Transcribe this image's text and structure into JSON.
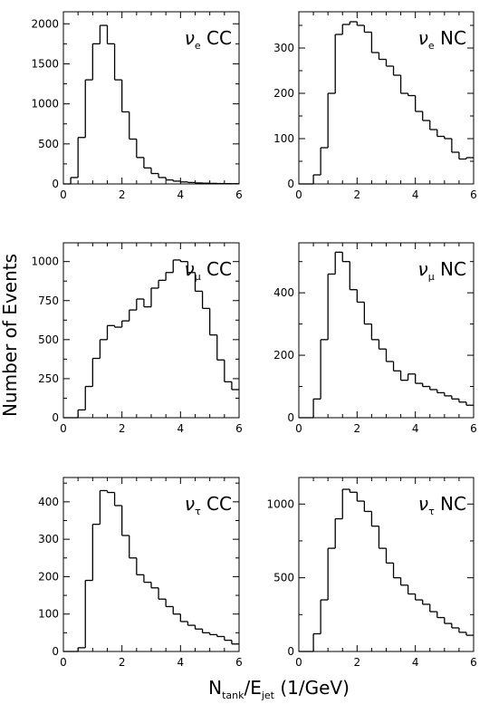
{
  "figure": {
    "ylabel": "Number of Events",
    "xlabel_main": "N",
    "xlabel_sub1": "tank",
    "xlabel_mid": "/E",
    "xlabel_sub2": "jet",
    "xlabel_tail": " (1/GeV)"
  },
  "chart_data": [
    {
      "type": "bar",
      "label_greek": "ν",
      "label_sub": "e",
      "label_text": " CC",
      "xlim": [
        0,
        6
      ],
      "xticks": [
        0,
        2,
        4,
        6
      ],
      "ylim": [
        0,
        2150
      ],
      "yticks": [
        0,
        500,
        1000,
        1500,
        2000
      ],
      "bin_width": 0.25,
      "values": [
        0,
        80,
        580,
        1300,
        1750,
        1980,
        1750,
        1300,
        900,
        560,
        330,
        200,
        130,
        80,
        50,
        35,
        25,
        18,
        12,
        9,
        7,
        5,
        4,
        3
      ]
    },
    {
      "type": "bar",
      "label_greek": "ν",
      "label_sub": "e",
      "label_text": " NC",
      "xlim": [
        0,
        6
      ],
      "xticks": [
        0,
        2,
        4,
        6
      ],
      "ylim": [
        0,
        380
      ],
      "yticks": [
        0,
        100,
        200,
        300
      ],
      "bin_width": 0.25,
      "values": [
        0,
        0,
        20,
        80,
        200,
        330,
        352,
        358,
        350,
        335,
        290,
        275,
        260,
        240,
        200,
        195,
        160,
        140,
        120,
        105,
        100,
        70,
        55,
        58
      ]
    },
    {
      "type": "bar",
      "label_greek": "ν",
      "label_sub": "μ",
      "label_text": " CC",
      "xlim": [
        0,
        6
      ],
      "xticks": [
        0,
        2,
        4,
        6
      ],
      "ylim": [
        0,
        1120
      ],
      "yticks": [
        0,
        250,
        500,
        750,
        1000
      ],
      "bin_width": 0.25,
      "values": [
        0,
        0,
        50,
        200,
        380,
        500,
        590,
        580,
        620,
        690,
        760,
        710,
        830,
        880,
        930,
        1010,
        1000,
        930,
        810,
        700,
        530,
        370,
        230,
        180
      ]
    },
    {
      "type": "bar",
      "label_greek": "ν",
      "label_sub": "μ",
      "label_text": " NC",
      "xlim": [
        0,
        6
      ],
      "xticks": [
        0,
        2,
        4,
        6
      ],
      "ylim": [
        0,
        560
      ],
      "yticks": [
        0,
        200,
        400
      ],
      "bin_width": 0.25,
      "values": [
        0,
        0,
        60,
        250,
        460,
        530,
        500,
        410,
        370,
        300,
        250,
        220,
        180,
        150,
        120,
        140,
        110,
        100,
        90,
        80,
        70,
        60,
        50,
        40
      ]
    },
    {
      "type": "bar",
      "label_greek": "ν",
      "label_sub": "τ",
      "label_text": " CC",
      "xlim": [
        0,
        6
      ],
      "xticks": [
        0,
        2,
        4,
        6
      ],
      "ylim": [
        0,
        465
      ],
      "yticks": [
        0,
        100,
        200,
        300,
        400
      ],
      "bin_width": 0.25,
      "values": [
        0,
        0,
        10,
        190,
        340,
        430,
        425,
        390,
        310,
        250,
        205,
        185,
        170,
        140,
        120,
        100,
        80,
        70,
        60,
        50,
        45,
        40,
        30,
        20
      ]
    },
    {
      "type": "bar",
      "label_greek": "ν",
      "label_sub": "τ",
      "label_text": " NC",
      "xlim": [
        0,
        6
      ],
      "xticks": [
        0,
        2,
        4,
        6
      ],
      "ylim": [
        0,
        1180
      ],
      "yticks": [
        0,
        500,
        1000
      ],
      "bin_width": 0.25,
      "values": [
        0,
        0,
        120,
        350,
        700,
        900,
        1100,
        1080,
        1020,
        950,
        850,
        700,
        600,
        500,
        450,
        390,
        350,
        320,
        270,
        230,
        190,
        160,
        130,
        110
      ]
    }
  ]
}
